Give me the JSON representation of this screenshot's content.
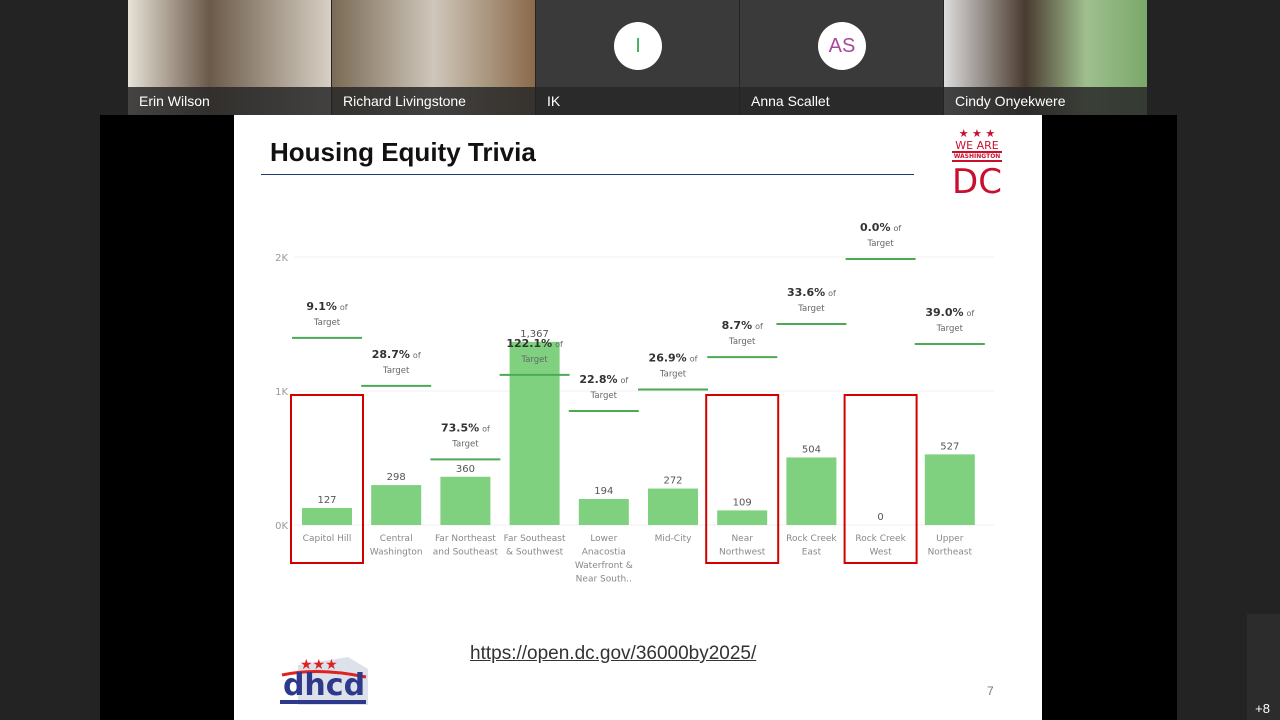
{
  "participants": [
    {
      "name": "Erin Wilson",
      "type": "video"
    },
    {
      "name": "Richard Livingstone",
      "type": "video"
    },
    {
      "name": "IK",
      "type": "avatar",
      "initials": "I",
      "color": "#3fae5a"
    },
    {
      "name": "Anna Scallet",
      "type": "avatar",
      "initials": "AS",
      "color": "#a8479c"
    },
    {
      "name": "Cindy Onyekwere",
      "type": "video"
    }
  ],
  "more_participants": "+8",
  "slide": {
    "title": "Housing Equity Trivia",
    "link": "https://open.dc.gov/36000by2025/",
    "page": "7",
    "logo_top": "WE ARE WASHINGTON DC",
    "logo_bottom": "dhcd"
  },
  "chart_data": {
    "type": "bar",
    "ylim": [
      0,
      2300
    ],
    "yticks": [
      "0K",
      "1K",
      "2K"
    ],
    "ytick_values": [
      0,
      1000,
      2000
    ],
    "grid": true,
    "bar_color": "#7fd17f",
    "target_color": "#4caa55",
    "highlight_color": "#d40000",
    "categories": [
      "Capitol Hill",
      "Central Washington",
      "Far Northeast and Southeast",
      "Far Southeast & Southwest",
      "Lower Anacostia Waterfront & Near South..",
      "Mid-City",
      "Near Northwest",
      "Rock Creek East",
      "Rock Creek West",
      "Upper Northeast"
    ],
    "category_lines": [
      [
        "Capitol Hill"
      ],
      [
        "Central",
        "Washington"
      ],
      [
        "Far Northeast",
        "and Southeast"
      ],
      [
        "Far Southeast",
        "& Southwest"
      ],
      [
        "Lower",
        "Anacostia",
        "Waterfront &",
        "Near South.."
      ],
      [
        "Mid-City"
      ],
      [
        "Near",
        "Northwest"
      ],
      [
        "Rock Creek",
        "East"
      ],
      [
        "Rock Creek",
        "West"
      ],
      [
        "Upper",
        "Northeast"
      ]
    ],
    "values": [
      127,
      298,
      360,
      1367,
      194,
      272,
      109,
      504,
      0,
      527
    ],
    "value_labels": [
      "127",
      "298",
      "360",
      "1,367",
      "194",
      "272",
      "109",
      "504",
      "0",
      "527"
    ],
    "targets": [
      1396,
      1038,
      490,
      1120,
      851,
      1011,
      1253,
      1500,
      1985,
      1351
    ],
    "pct_labels": [
      "9.1%",
      "28.7%",
      "73.5%",
      "122.1%",
      "22.8%",
      "26.9%",
      "8.7%",
      "33.6%",
      "0.0%",
      "39.0%"
    ],
    "pct_suffix": "of",
    "pct_target": "Target",
    "highlighted": [
      0,
      6,
      8
    ]
  }
}
